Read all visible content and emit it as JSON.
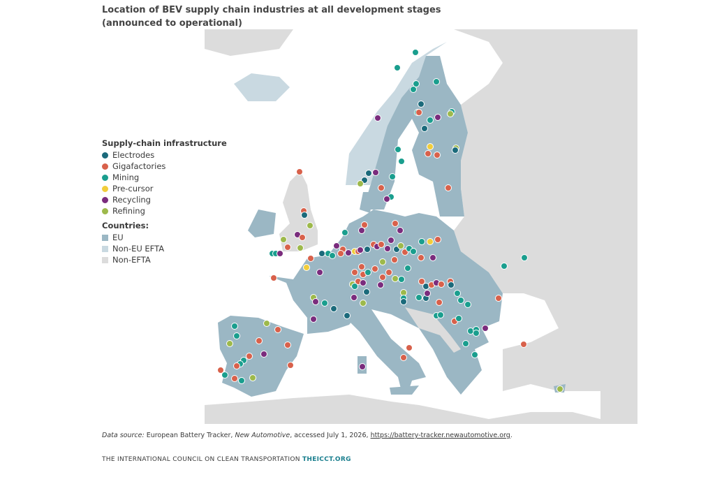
{
  "header": {
    "title": "Location of BEV supply chain industries at all development stages (announced to operational)"
  },
  "legend": {
    "infrastructure_title": "Supply-chain infrastructure",
    "infrastructure": [
      {
        "label": "Electrodes",
        "color": "#1b6a7b"
      },
      {
        "label": "Gigafactories",
        "color": "#d8614b"
      },
      {
        "label": "Mining",
        "color": "#1a9e8e"
      },
      {
        "label": "Pre-cursor",
        "color": "#f1cd3b"
      },
      {
        "label": "Recycling",
        "color": "#7a2c7d"
      },
      {
        "label": "Refining",
        "color": "#9db94b"
      }
    ],
    "countries_title": "Countries:",
    "countries": [
      {
        "label": "EU",
        "color": "#9bb7c4"
      },
      {
        "label": "Non-EU EFTA",
        "color": "#c9d9e1"
      },
      {
        "label": "Non-EFTA",
        "color": "#dcdcdc"
      }
    ]
  },
  "source": {
    "label": "Data source:",
    "text1": "European Battery Tracker,",
    "publication": "New Automotive",
    "text2": ", accessed July 1, 2026,",
    "url": "https://battery-tracker.newautomotive.org",
    "end": "."
  },
  "footer": {
    "org": "THE INTERNATIONAL COUNCIL ON CLEAN TRANSPORTATION",
    "site": "THEICCT.ORG"
  }
}
